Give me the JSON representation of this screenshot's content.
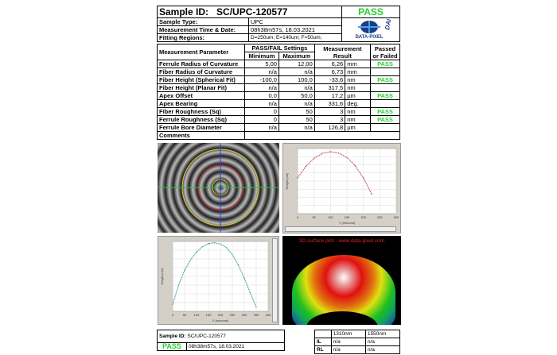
{
  "header": {
    "sample_id_label": "Sample ID:",
    "sample_id": "SC/UPC-120577",
    "status": "PASS",
    "rows": [
      {
        "label": "Sample Type:",
        "value": "UPC"
      },
      {
        "label": "Measurement Time & Date:",
        "value": "08h38m57s,  18.03.2021"
      },
      {
        "label": "Fitting Regions:",
        "value": "D=250um;  E=140um;  F=50um;"
      }
    ],
    "logo_text": "DATA-PIXEL",
    "logo_side": "DAISI"
  },
  "table": {
    "headers": {
      "param": "Measurement Parameter",
      "settings": "PASS/FAIL Settings",
      "min": "Minimum",
      "max": "Maximum",
      "result": "Measurement Result",
      "passed": "Passed or Failed"
    },
    "rows": [
      {
        "name": "Ferrule Radius of Curvature",
        "min": "5,00",
        "max": "12,00",
        "value": "6,26",
        "unit": "mm",
        "status": "PASS"
      },
      {
        "name": "Fiber Radius of Curvature",
        "min": "n/a",
        "max": "n/a",
        "value": "6,73",
        "unit": "mm",
        "status": ""
      },
      {
        "name": "Fiber Height (Spherical Fit)",
        "min": "-100,0",
        "max": "100,0",
        "value": "-33,6",
        "unit": "nm",
        "status": "PASS"
      },
      {
        "name": "Fiber Height (Planar Fit)",
        "min": "n/a",
        "max": "n/a",
        "value": "317,5",
        "unit": "nm",
        "status": ""
      },
      {
        "name": "Apex Offset",
        "min": "0,0",
        "max": "50,0",
        "value": "17,2",
        "unit": "µm",
        "status": "PASS"
      },
      {
        "name": "Apex Bearing",
        "min": "n/a",
        "max": "n/a",
        "value": "331,6",
        "unit": "deg.",
        "status": ""
      },
      {
        "name": "Fiber Roughness (Sq)",
        "min": "0",
        "max": "50",
        "value": "3",
        "unit": "nm",
        "status": "PASS"
      },
      {
        "name": "Ferrule Roughness (Sq)",
        "min": "0",
        "max": "50",
        "value": "3",
        "unit": "nm",
        "status": "PASS"
      },
      {
        "name": "Ferrule Bore Diameter",
        "min": "n/a",
        "max": "n/a",
        "value": "126,8",
        "unit": "µm",
        "status": ""
      }
    ],
    "comments_label": "Comments",
    "comments": ""
  },
  "surface_title": "3D surface plot - www.data-pixel.com",
  "chart_data": [
    {
      "type": "line",
      "xlabel": "Y (microns)",
      "ylabel": "Height (nm)",
      "xticks": [
        0,
        50,
        100,
        150,
        200,
        250,
        300
      ],
      "xlim": [
        0,
        300
      ],
      "ylim": [
        0,
        4000
      ],
      "x": [
        0,
        25,
        50,
        75,
        100,
        125,
        150,
        175,
        200,
        225
      ],
      "y": [
        2200,
        2900,
        3400,
        3700,
        3800,
        3720,
        3450,
        2950,
        2200,
        1200
      ],
      "color": "#c0404a"
    },
    {
      "type": "line",
      "xlabel": "X (microns)",
      "ylabel": "Height (nm)",
      "xticks": [
        0,
        50,
        100,
        150,
        200,
        250,
        300,
        350,
        400
      ],
      "xlim": [
        0,
        400
      ],
      "ylim": [
        0,
        8000
      ],
      "x": [
        0,
        25,
        50,
        75,
        100,
        125,
        150,
        175,
        200,
        225,
        250,
        275,
        300,
        325,
        350
      ],
      "y": [
        800,
        3000,
        4700,
        5900,
        6800,
        7400,
        7750,
        7850,
        7700,
        7300,
        6500,
        5300,
        3800,
        2100,
        500
      ],
      "color": "#2a9a8a"
    }
  ],
  "footer": {
    "sample_label": "Sample ID:",
    "sample_id": "SC/UPC-120577",
    "status": "PASS",
    "time": "08h38m57s,  18.03.2021",
    "loss": {
      "cols": [
        "1310nm",
        "1550nm"
      ],
      "rows": [
        {
          "label": "IL",
          "v": [
            "n/a",
            "n/a"
          ]
        },
        {
          "label": "RL",
          "v": [
            "n/a",
            "n/a"
          ]
        }
      ]
    }
  }
}
